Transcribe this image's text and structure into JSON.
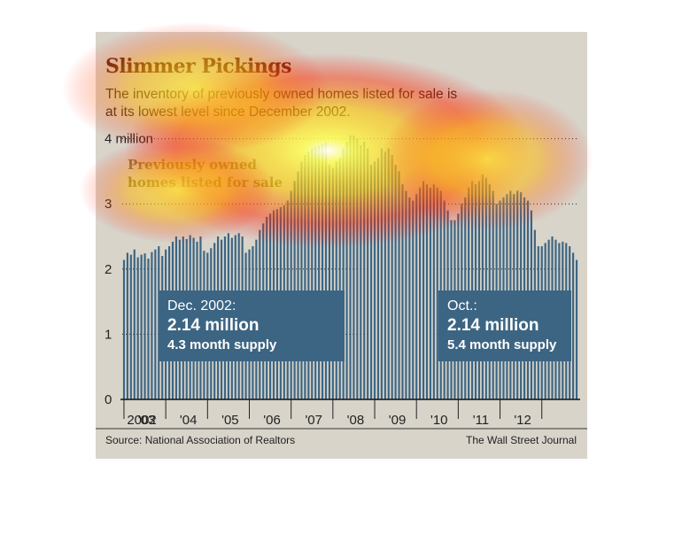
{
  "chart_data": {
    "type": "bar",
    "title": "Slimmer Pickings",
    "subtitle": "The inventory of previously owned homes listed for sale is at its lowest level since December 2002.",
    "series": [
      {
        "name": "Previously owned homes listed for sale",
        "unit": "million",
        "start": "2002-12",
        "values": [
          2.14,
          2.25,
          2.22,
          2.3,
          2.18,
          2.22,
          2.24,
          2.16,
          2.26,
          2.3,
          2.35,
          2.2,
          2.3,
          2.35,
          2.42,
          2.5,
          2.45,
          2.5,
          2.46,
          2.52,
          2.48,
          2.42,
          2.5,
          2.28,
          2.25,
          2.32,
          2.4,
          2.5,
          2.45,
          2.5,
          2.55,
          2.48,
          2.52,
          2.55,
          2.5,
          2.25,
          2.3,
          2.35,
          2.45,
          2.6,
          2.7,
          2.8,
          2.85,
          2.9,
          2.92,
          2.95,
          2.98,
          3.05,
          3.2,
          3.35,
          3.5,
          3.65,
          3.75,
          3.8,
          3.85,
          3.88,
          3.9,
          3.92,
          3.95,
          3.6,
          3.55,
          3.65,
          3.7,
          3.85,
          3.95,
          4.05,
          4.05,
          4.0,
          3.9,
          3.95,
          3.85,
          3.6,
          3.65,
          3.7,
          3.85,
          3.8,
          3.85,
          3.75,
          3.6,
          3.5,
          3.3,
          3.2,
          3.1,
          3.05,
          3.15,
          3.25,
          3.35,
          3.3,
          3.25,
          3.3,
          3.25,
          3.2,
          3.05,
          2.9,
          2.75,
          2.75,
          2.85,
          3.0,
          3.1,
          3.25,
          3.35,
          3.3,
          3.35,
          3.45,
          3.4,
          3.3,
          3.2,
          3.0,
          3.05,
          3.1,
          3.15,
          3.2,
          3.15,
          3.2,
          3.18,
          3.1,
          3.05,
          2.9,
          2.6,
          2.35,
          2.35,
          2.4,
          2.45,
          2.5,
          2.45,
          2.4,
          2.42,
          2.4,
          2.35,
          2.25,
          2.14
        ]
      }
    ],
    "x_tick_labels": [
      "2002",
      "'03",
      "'04",
      "'05",
      "'06",
      "'07",
      "'08",
      "'09",
      "'10",
      "'11",
      "'12"
    ],
    "y_ticks": [
      {
        "value": 0,
        "label": "0"
      },
      {
        "value": 1,
        "label": "1"
      },
      {
        "value": 2,
        "label": "2"
      },
      {
        "value": 3,
        "label": "3"
      },
      {
        "value": 4,
        "label": "4 million"
      }
    ],
    "ylim": [
      0,
      4.3
    ],
    "grid": "dotted horizontal",
    "annotations": [
      {
        "date": "Dec. 2002:",
        "value": "2.14 million",
        "supply": "4.3 month supply"
      },
      {
        "date": "Oct.:",
        "value": "2.14 million",
        "supply": "5.4 month supply"
      }
    ]
  },
  "source": "Source: National Association of Realtors",
  "credit": "The Wall Street Journal",
  "colors": {
    "background": "#d8d4ca",
    "bar": "#3c6583",
    "title": "#5a1f14",
    "callout": "#3c6583"
  }
}
